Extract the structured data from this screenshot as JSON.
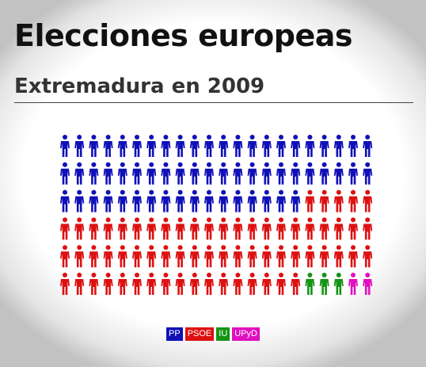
{
  "header": {
    "title": "Elecciones europeas",
    "subtitle": "Extremadura en 2009"
  },
  "chart_data": {
    "type": "pictogram",
    "title": "Elecciones europeas",
    "subtitle": "Extremadura en 2009",
    "columns": 22,
    "rows": 6,
    "series": [
      {
        "name": "PP",
        "value": 61,
        "color": "#1010b8"
      },
      {
        "name": "PSOE",
        "value": 66,
        "color": "#dd1111"
      },
      {
        "name": "IU",
        "value": 3,
        "color": "#149414"
      },
      {
        "name": "UPyD",
        "value": 2,
        "color": "#e010c0"
      }
    ]
  }
}
